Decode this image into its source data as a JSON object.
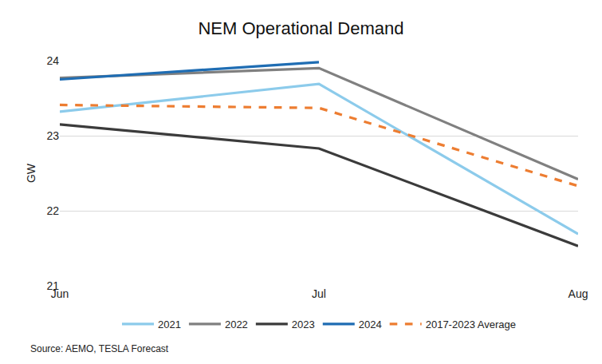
{
  "chart_data": {
    "type": "line",
    "title": "NEM Operational Demand",
    "y_label": "GW",
    "annotations": [
      "Source: AEMO, TESLA Forecast"
    ],
    "categories": [
      "Jun",
      "Jul",
      "Aug"
    ],
    "series": [
      {
        "name": "2021",
        "color": "#8CCBEB",
        "line_style": "solid",
        "values": [
          23.32,
          23.69,
          21.69
        ]
      },
      {
        "name": "2022",
        "color": "#808080",
        "line_style": "solid",
        "values": [
          23.77,
          23.9,
          22.42
        ]
      },
      {
        "name": "2023",
        "color": "#3B3B3B",
        "line_style": "solid",
        "values": [
          23.15,
          22.83,
          21.53
        ]
      },
      {
        "name": "2024",
        "color": "#1F6DB3",
        "line_style": "solid",
        "values": [
          23.75,
          23.98,
          null
        ]
      },
      {
        "name": "2017-2023 Average",
        "color": "#ED7D31",
        "line_style": "dashed",
        "values": [
          23.41,
          23.37,
          22.33
        ]
      }
    ],
    "ylim": [
      21,
      24
    ],
    "yticks": [
      21,
      22,
      23,
      24
    ],
    "grid": true,
    "legend": "bottom"
  }
}
